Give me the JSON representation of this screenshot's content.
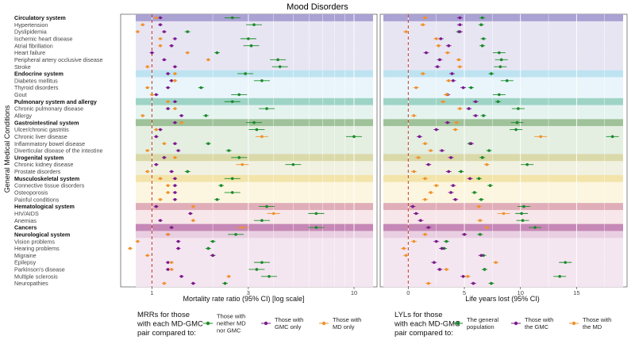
{
  "chart_data": [
    {
      "type": "scatter",
      "panel": "left",
      "title": "Mood Disorders",
      "xlabel": "Mortality rate ratio (95% CI) [log scale]",
      "ylabel": "General Medical Conditions",
      "xscale": "log",
      "xlim": [
        0.7,
        13
      ],
      "xticks": [
        1,
        3,
        10
      ],
      "reference_line": 1,
      "series": [
        {
          "name": "Those with neither MD nor GMC",
          "color": "#1a8a2a"
        },
        {
          "name": "Those with GMC only",
          "color": "#7b1a8c"
        },
        {
          "name": "Those with MD only",
          "color": "#f0922b"
        }
      ]
    },
    {
      "type": "scatter",
      "panel": "right",
      "xlabel": "Life years lost (95% CI)",
      "xlim": [
        -2.5,
        19.5
      ],
      "xticks": [
        0,
        5,
        10,
        15
      ],
      "reference_line": 0,
      "series": [
        {
          "name": "The general population",
          "color": "#1a8a2a"
        },
        {
          "name": "Those with the GMC",
          "color": "#7b1a8c"
        },
        {
          "name": "Those with the MD",
          "color": "#f0922b"
        }
      ]
    }
  ],
  "conditions": [
    {
      "label": "Circulatory system",
      "header": true,
      "band": "#a9a2d3",
      "mrr": [
        2.5,
        1.1,
        1.05
      ],
      "lyl": [
        6.6,
        4.6,
        1.5
      ]
    },
    {
      "label": "Hypertension",
      "header": false,
      "band": "#e8e5f3",
      "mrr": [
        3.2,
        1.1,
        0.9
      ],
      "lyl": [
        6.5,
        4.6,
        1.3
      ]
    },
    {
      "label": "Dyslipidemia",
      "header": false,
      "band": "#e8e5f3",
      "mrr": [
        1.5,
        1.15,
        0.85
      ],
      "lyl": [
        4.5,
        4.6,
        -0.2
      ]
    },
    {
      "label": "Ischemic heart disease",
      "header": false,
      "band": "#e8e5f3",
      "mrr": [
        3.0,
        1.3,
        1.1
      ],
      "lyl": [
        6.7,
        2.9,
        2.5
      ]
    },
    {
      "label": "Atrial fibrillation",
      "header": false,
      "band": "#e8e5f3",
      "mrr": [
        3.1,
        1.25,
        1.1
      ],
      "lyl": [
        6.6,
        3.6,
        2.7
      ]
    },
    {
      "label": "Heart failure",
      "header": false,
      "band": "#e8e5f3",
      "mrr": [
        2.1,
        1.0,
        1.5
      ],
      "lyl": [
        8.1,
        1.6,
        3.5
      ]
    },
    {
      "label": "Peripheral artery occlusive disease",
      "header": false,
      "band": "#e8e5f3",
      "mrr": [
        4.2,
        1.15,
        1.9
      ],
      "lyl": [
        8.3,
        2.8,
        4.5
      ]
    },
    {
      "label": "Stroke",
      "header": false,
      "band": "#e8e5f3",
      "mrr": [
        4.3,
        1.3,
        0.95
      ],
      "lyl": [
        8.2,
        2.6,
        4.6
      ]
    },
    {
      "label": "Endocrine system",
      "header": true,
      "band": "#bde3f1",
      "mrr": [
        2.9,
        1.2,
        1.3
      ],
      "lyl": [
        7.4,
        3.9,
        1.3
      ]
    },
    {
      "label": "Diabetes mellitus",
      "header": false,
      "band": "#e9f5fb",
      "mrr": [
        3.5,
        1.25,
        1.3
      ],
      "lyl": [
        8.8,
        4.0,
        3.6
      ]
    },
    {
      "label": "Thyroid disorders",
      "header": false,
      "band": "#e9f5fb",
      "mrr": [
        1.75,
        1.2,
        0.95
      ],
      "lyl": [
        5.6,
        4.9,
        0.7
      ]
    },
    {
      "label": "Gout",
      "header": false,
      "band": "#e9f5fb",
      "mrr": [
        2.7,
        1.05,
        1.0
      ],
      "lyl": [
        8.1,
        3.5,
        3.4
      ]
    },
    {
      "label": "Pulmonary system and allergy",
      "header": true,
      "band": "#9ed4c6",
      "mrr": [
        2.5,
        1.3,
        1.2
      ],
      "lyl": [
        8.0,
        6.0,
        3.1
      ]
    },
    {
      "label": "Chronic pulmonary disease",
      "header": false,
      "band": "#e5f3ef",
      "mrr": [
        3.7,
        1.2,
        1.3
      ],
      "lyl": [
        9.8,
        5.4,
        4.6
      ]
    },
    {
      "label": "Allergy",
      "header": false,
      "band": "#e5f3ef",
      "mrr": [
        1.85,
        1.4,
        0.9
      ],
      "lyl": [
        6.7,
        6.0,
        0.5
      ]
    },
    {
      "label": "Gastrointestinal system",
      "header": true,
      "band": "#9fc29a",
      "mrr": [
        3.2,
        1.3,
        1.4
      ],
      "lyl": [
        9.7,
        3.5,
        4.3
      ]
    },
    {
      "label": "Ulcer/chronic gastritis",
      "header": false,
      "band": "#e4efe2",
      "mrr": [
        3.3,
        1.1,
        1.05
      ],
      "lyl": [
        9.6,
        2.5,
        4.2
      ]
    },
    {
      "label": "Chronic liver disease",
      "header": false,
      "band": "#e4efe2",
      "mrr": [
        10.0,
        1.05,
        3.5
      ],
      "lyl": [
        18.2,
        1.0,
        11.8
      ]
    },
    {
      "label": "Inflammatory bowel disease",
      "header": false,
      "band": "#e4efe2",
      "mrr": [
        1.9,
        1.3,
        1.15
      ],
      "lyl": [
        5.5,
        5.6,
        1.5
      ]
    },
    {
      "label": "Diverticular disease of the intestine",
      "header": false,
      "band": "#e4efe2",
      "mrr": [
        2.4,
        1.35,
        0.95
      ],
      "lyl": [
        7.2,
        3.0,
        2.0
      ]
    },
    {
      "label": "Urogenital system",
      "header": true,
      "band": "#dad9a9",
      "mrr": [
        2.7,
        1.15,
        1.3
      ],
      "lyl": [
        6.6,
        3.8,
        0.9
      ]
    },
    {
      "label": "Chronic kidney disease",
      "header": false,
      "band": "#f1f1e1",
      "mrr": [
        5.0,
        1.05,
        2.8
      ],
      "lyl": [
        10.6,
        1.8,
        7.0
      ]
    },
    {
      "label": "Prostate disorders",
      "header": false,
      "band": "#f1f1e1",
      "mrr": [
        1.5,
        1.25,
        0.95
      ],
      "lyl": [
        4.7,
        3.6,
        0.5
      ]
    },
    {
      "label": "Musculoskeletal system",
      "header": true,
      "band": "#f2e4aa",
      "mrr": [
        2.5,
        1.3,
        1.1
      ],
      "lyl": [
        6.3,
        5.5,
        1.5
      ]
    },
    {
      "label": "Connective tissue disorders",
      "header": false,
      "band": "#fcf6e0",
      "mrr": [
        2.2,
        1.3,
        1.2
      ],
      "lyl": [
        7.3,
        4.0,
        2.5
      ]
    },
    {
      "label": "Osteoporosis",
      "header": false,
      "band": "#fcf6e0",
      "mrr": [
        2.5,
        1.3,
        1.2
      ],
      "lyl": [
        5.9,
        3.8,
        2.0
      ]
    },
    {
      "label": "Painful conditions",
      "header": false,
      "band": "#fcf6e0",
      "mrr": [
        2.1,
        1.3,
        1.1
      ],
      "lyl": [
        6.5,
        4.2,
        1.5
      ]
    },
    {
      "label": "Hematological system",
      "header": true,
      "band": "#e0aeb9",
      "mrr": [
        3.7,
        1.05,
        1.6
      ],
      "lyl": [
        10.3,
        0.4,
        6.3
      ]
    },
    {
      "label": "HIV/AIDS",
      "header": false,
      "band": "#f7e6ea",
      "mrr": [
        6.5,
        1.55,
        4.0
      ],
      "lyl": [
        10.1,
        0.7,
        8.5
      ]
    },
    {
      "label": "Anemias",
      "header": false,
      "band": "#f7e6ea",
      "mrr": [
        3.5,
        1.1,
        1.6
      ],
      "lyl": [
        10.2,
        1.1,
        6.4
      ]
    },
    {
      "label": "Cancers",
      "header": true,
      "band": "#c688b6",
      "mrr": [
        6.5,
        1.25,
        2.8
      ],
      "lyl": [
        11.3,
        1.8,
        7.0
      ]
    },
    {
      "label": "Neurological system",
      "header": true,
      "band": "#e9cfe2",
      "mrr": [
        2.6,
        1.2,
        1.2
      ],
      "lyl": [
        6.4,
        5.0,
        1.5
      ]
    },
    {
      "label": "Vision problems",
      "header": false,
      "band": "#f4e6f0",
      "mrr": [
        2.0,
        1.35,
        0.85
      ],
      "lyl": [
        3.4,
        2.5,
        0.5
      ]
    },
    {
      "label": "Hearing problems",
      "header": false,
      "band": "#f4e6f0",
      "mrr": [
        1.9,
        1.35,
        0.78
      ],
      "lyl": [
        3.2,
        3.0,
        -0.4
      ]
    },
    {
      "label": "Migraine",
      "header": false,
      "band": "#f4e6f0",
      "mrr": [
        2.0,
        2.0,
        0.95
      ],
      "lyl": [
        6.7,
        6.5,
        -0.2
      ]
    },
    {
      "label": "Epilepsy",
      "header": false,
      "band": "#f4e6f0",
      "mrr": [
        3.5,
        1.2,
        1.25
      ],
      "lyl": [
        14.0,
        2.3,
        7.8
      ]
    },
    {
      "label": "Parkinson's disease",
      "header": false,
      "band": "#f4e6f0",
      "mrr": [
        3.3,
        1.2,
        1.25
      ],
      "lyl": [
        6.8,
        2.8,
        3.4
      ]
    },
    {
      "label": "Multiple sclerosis",
      "header": false,
      "band": "#f4e6f0",
      "mrr": [
        3.8,
        1.4,
        2.4
      ],
      "lyl": [
        13.5,
        4.9,
        5.3
      ]
    },
    {
      "label": "Neuropathies",
      "header": false,
      "band": "#f4e6f0",
      "mrr": [
        2.3,
        1.6,
        1.15
      ],
      "lyl": [
        7.4,
        5.8,
        1.8
      ]
    }
  ],
  "legend_left": {
    "title": "MRRs for those with each MD-GMC pair compared to:",
    "items": [
      "Those with neither MD nor GMC",
      "Those with GMC only",
      "Those with MD only"
    ]
  },
  "legend_right": {
    "title": "LYLs for those with each MD-GMC pair compared to:",
    "items": [
      "The general population",
      "Those with the GMC",
      "Those with the MD"
    ]
  }
}
